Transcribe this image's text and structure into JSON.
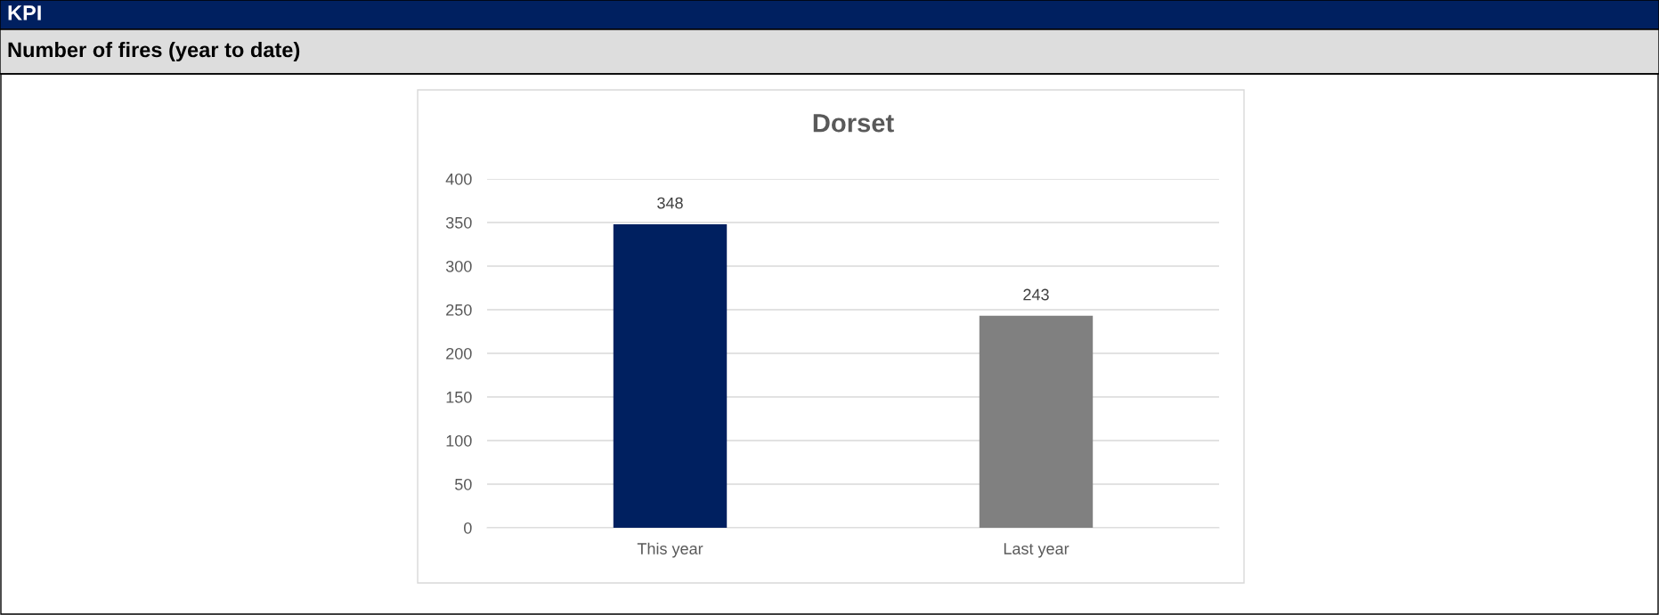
{
  "chart_data": {
    "type": "bar",
    "title": "Dorset",
    "annotations": [
      "KPI",
      "Number of fires (year to date)"
    ],
    "categories": [
      "This year",
      "Last year"
    ],
    "values": [
      348,
      243
    ],
    "colors": [
      "#002060",
      "#808080"
    ],
    "ylim": [
      0,
      400
    ],
    "yticks": [
      0,
      50,
      100,
      150,
      200,
      250,
      300,
      350,
      400
    ],
    "grid": "y",
    "data_labels": true
  }
}
